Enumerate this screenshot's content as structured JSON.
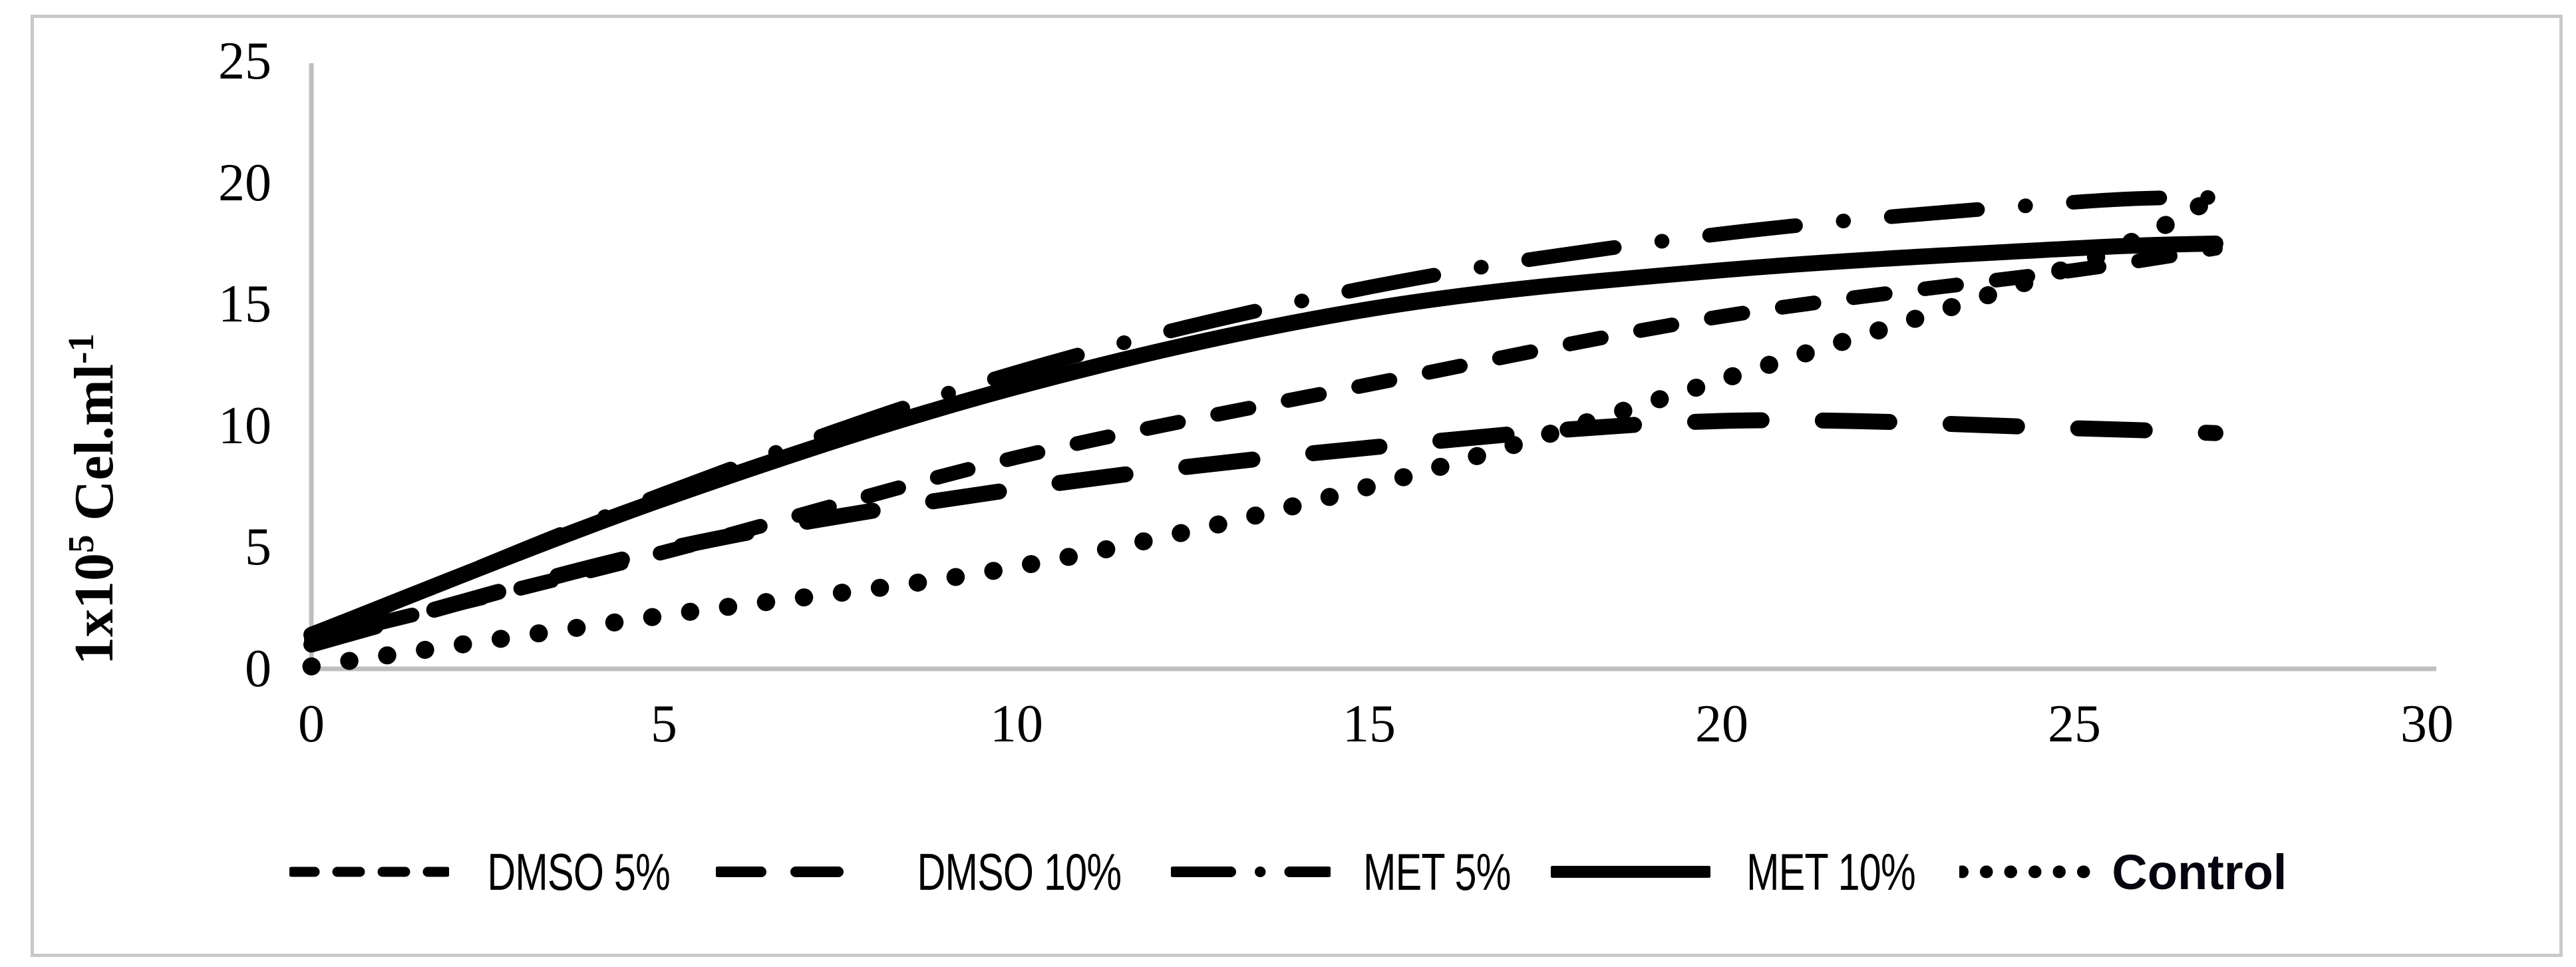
{
  "figure": {
    "background": "#ffffff",
    "frame_border_color": "#c9c9c9",
    "axis_color": "#bfbfbf",
    "line_color": "#000000"
  },
  "chart_data": {
    "type": "line",
    "smoothed": true,
    "title": "",
    "xlabel": "",
    "ylabel": "1x10⁵ Cel.ml⁻¹",
    "ylabel_parts": {
      "prefix": "1x10",
      "sup1": "5",
      "mid": " Cel.ml",
      "sup2": "-1"
    },
    "xlim": [
      0,
      30
    ],
    "ylim": [
      0,
      25
    ],
    "xticks": [
      "0",
      "5",
      "10",
      "15",
      "20",
      "25",
      "30"
    ],
    "yticks": [
      "0",
      "5",
      "10",
      "15",
      "20",
      "25"
    ],
    "grid": false,
    "legend_position": "bottom",
    "x": [
      0,
      5,
      10,
      15,
      20,
      25,
      27
    ],
    "series": [
      {
        "name": "DMSO 5%",
        "style": "dash",
        "values": [
          1.2,
          4.8,
          8.7,
          11.7,
          14.5,
          16.4,
          17.3
        ]
      },
      {
        "name": "DMSO 10%",
        "style": "long-dash",
        "values": [
          1.0,
          4.9,
          7.4,
          9.1,
          10.2,
          9.9,
          9.7
        ]
      },
      {
        "name": "MET 5%",
        "style": "dash-dot",
        "values": [
          1.3,
          7.2,
          12.2,
          15.7,
          17.9,
          19.2,
          19.4
        ]
      },
      {
        "name": "MET 10%",
        "style": "solid",
        "values": [
          1.4,
          7.0,
          11.6,
          14.8,
          16.4,
          17.3,
          17.5
        ]
      },
      {
        "name": "Control",
        "style": "dotted",
        "values": [
          0.1,
          2.2,
          4.2,
          7.5,
          11.9,
          16.6,
          19.4
        ],
        "label_weight": "bold"
      }
    ]
  }
}
